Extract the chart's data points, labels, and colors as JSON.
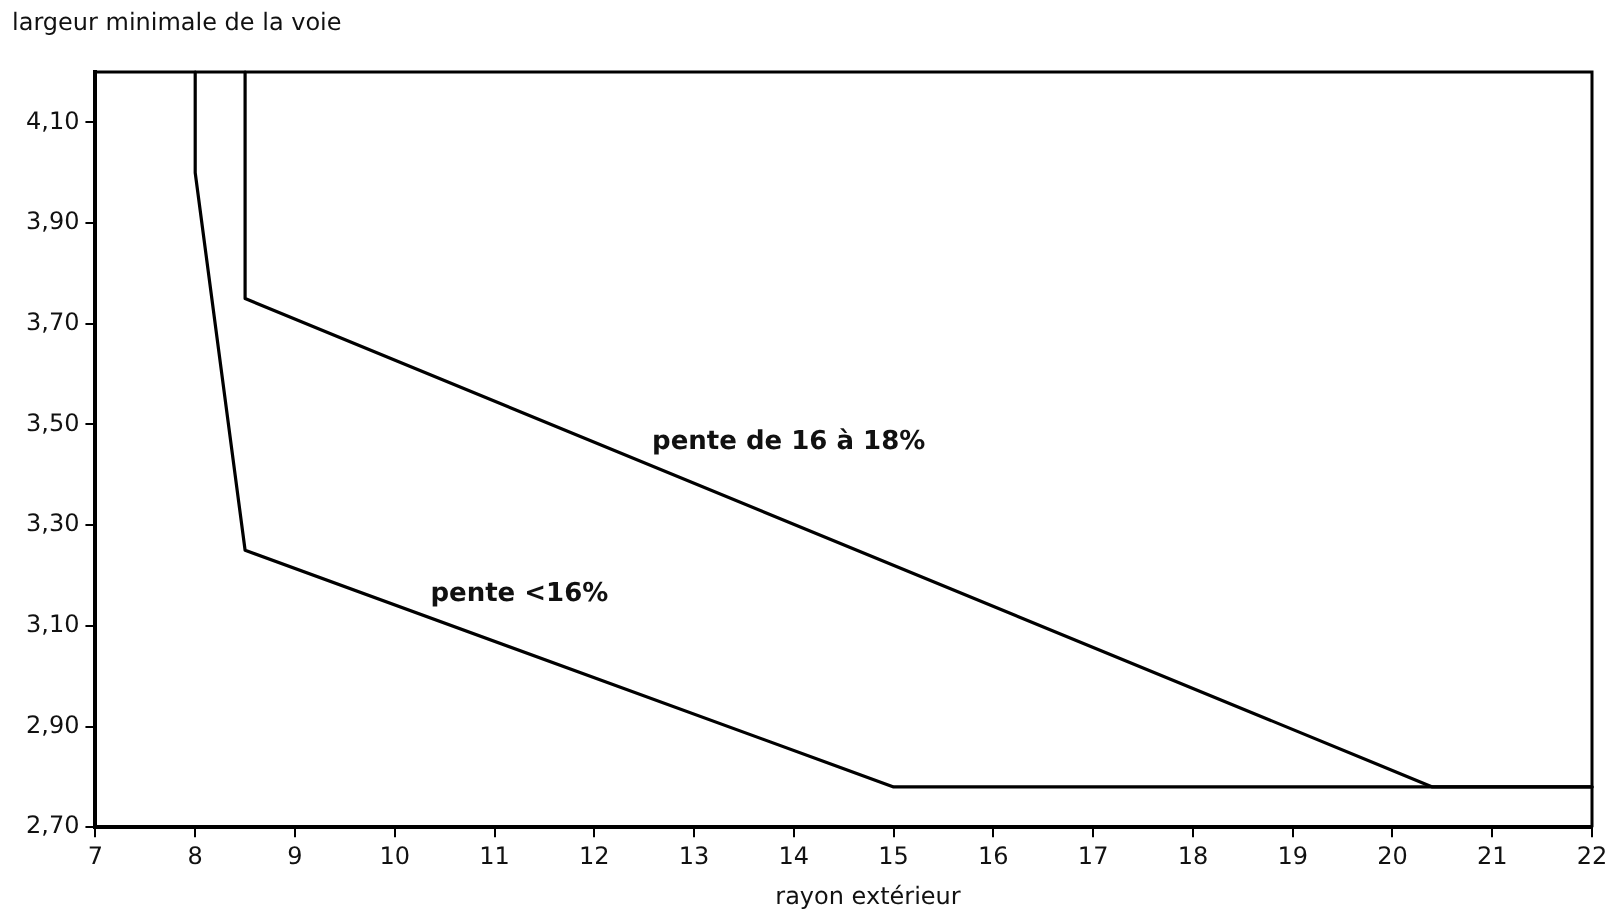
{
  "chart_data": {
    "type": "line",
    "xlabel": "rayon extérieur",
    "ylabel": "largeur minimale de la voie",
    "series": [
      {
        "name": "pente <16%",
        "color": "#000000",
        "x": [
          8,
          8,
          8.5,
          15,
          22
        ],
        "values": [
          4.2,
          4.0,
          3.25,
          2.78,
          2.78
        ]
      },
      {
        "name": "pente de 16 à 18%",
        "color": "#000000",
        "x": [
          8.5,
          8.5,
          20.4,
          22
        ],
        "values": [
          4.2,
          3.75,
          2.78,
          2.78
        ]
      }
    ],
    "xlim": [
      7,
      22
    ],
    "xticks": [
      7,
      8,
      9,
      10,
      11,
      12,
      13,
      14,
      15,
      16,
      17,
      18,
      19,
      20,
      21,
      22
    ],
    "ylim": [
      2.7,
      4.2
    ],
    "yticks": [
      {
        "value": 2.7,
        "label": "2,70"
      },
      {
        "value": 2.9,
        "label": "2,90"
      },
      {
        "value": 3.1,
        "label": "3,10"
      },
      {
        "value": 3.3,
        "label": "3,30"
      },
      {
        "value": 3.5,
        "label": "3,50"
      },
      {
        "value": 3.7,
        "label": "3,70"
      },
      {
        "value": 3.9,
        "label": "3,90"
      },
      {
        "value": 4.1,
        "label": "4,10"
      }
    ],
    "grid": false,
    "legend": false,
    "marker": "none",
    "line_style": "solid"
  }
}
